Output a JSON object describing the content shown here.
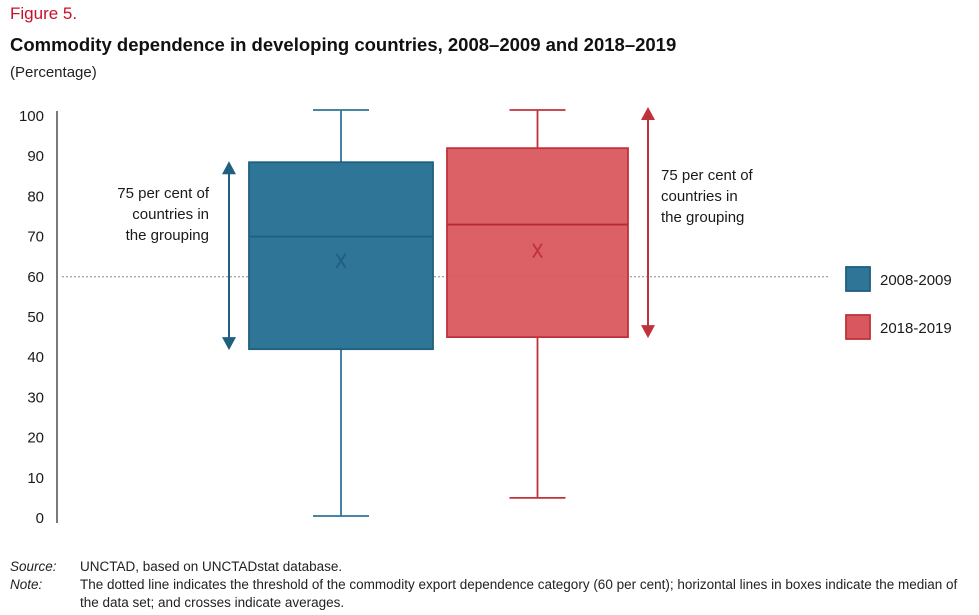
{
  "figure": {
    "label": "Figure 5.",
    "title": "Commodity dependence in developing countries, 2008–2009 and 2018–2019",
    "subtitle": "(Percentage)"
  },
  "footer": {
    "source_key": "Source:",
    "source_text": "UNCTAD, based on UNCTADstat database.",
    "note_key": "Note:",
    "note_text": "The dotted line indicates the threshold of the commodity export dependence category (60 per cent); horizontal lines in boxes indicate the median of the data set; and crosses indicate averages."
  },
  "chart_data": {
    "type": "box",
    "title": "Commodity dependence in developing countries, 2008–2009 and 2018–2019",
    "ylabel": "(Percentage)",
    "ylim": [
      0,
      100
    ],
    "y_ticks": [
      0,
      10,
      20,
      30,
      40,
      50,
      60,
      70,
      80,
      90,
      100
    ],
    "threshold": 60,
    "series": [
      {
        "name": "2008-2009",
        "color": "#2e7598",
        "min": 0.5,
        "q1": 42,
        "median": 70,
        "mean": 64,
        "q3": 88.5,
        "max": 101.5
      },
      {
        "name": "2018-2019",
        "color": "#d9585f",
        "min": 5,
        "q1": 45,
        "median": 73,
        "mean": 66.5,
        "q3": 92,
        "max": 101.5
      }
    ],
    "annotations": [
      {
        "text_lines": [
          "75 per cent of",
          "countries in",
          "the grouping"
        ],
        "series": "2008-2009",
        "range": [
          42,
          88.5
        ]
      },
      {
        "text_lines": [
          "75 per cent of",
          "countries in",
          "the grouping"
        ],
        "series": "2018-2019",
        "range": [
          45,
          102
        ]
      }
    ],
    "legend": {
      "position": "right",
      "entries": [
        "2008-2009",
        "2018-2019"
      ]
    },
    "grid": false
  }
}
